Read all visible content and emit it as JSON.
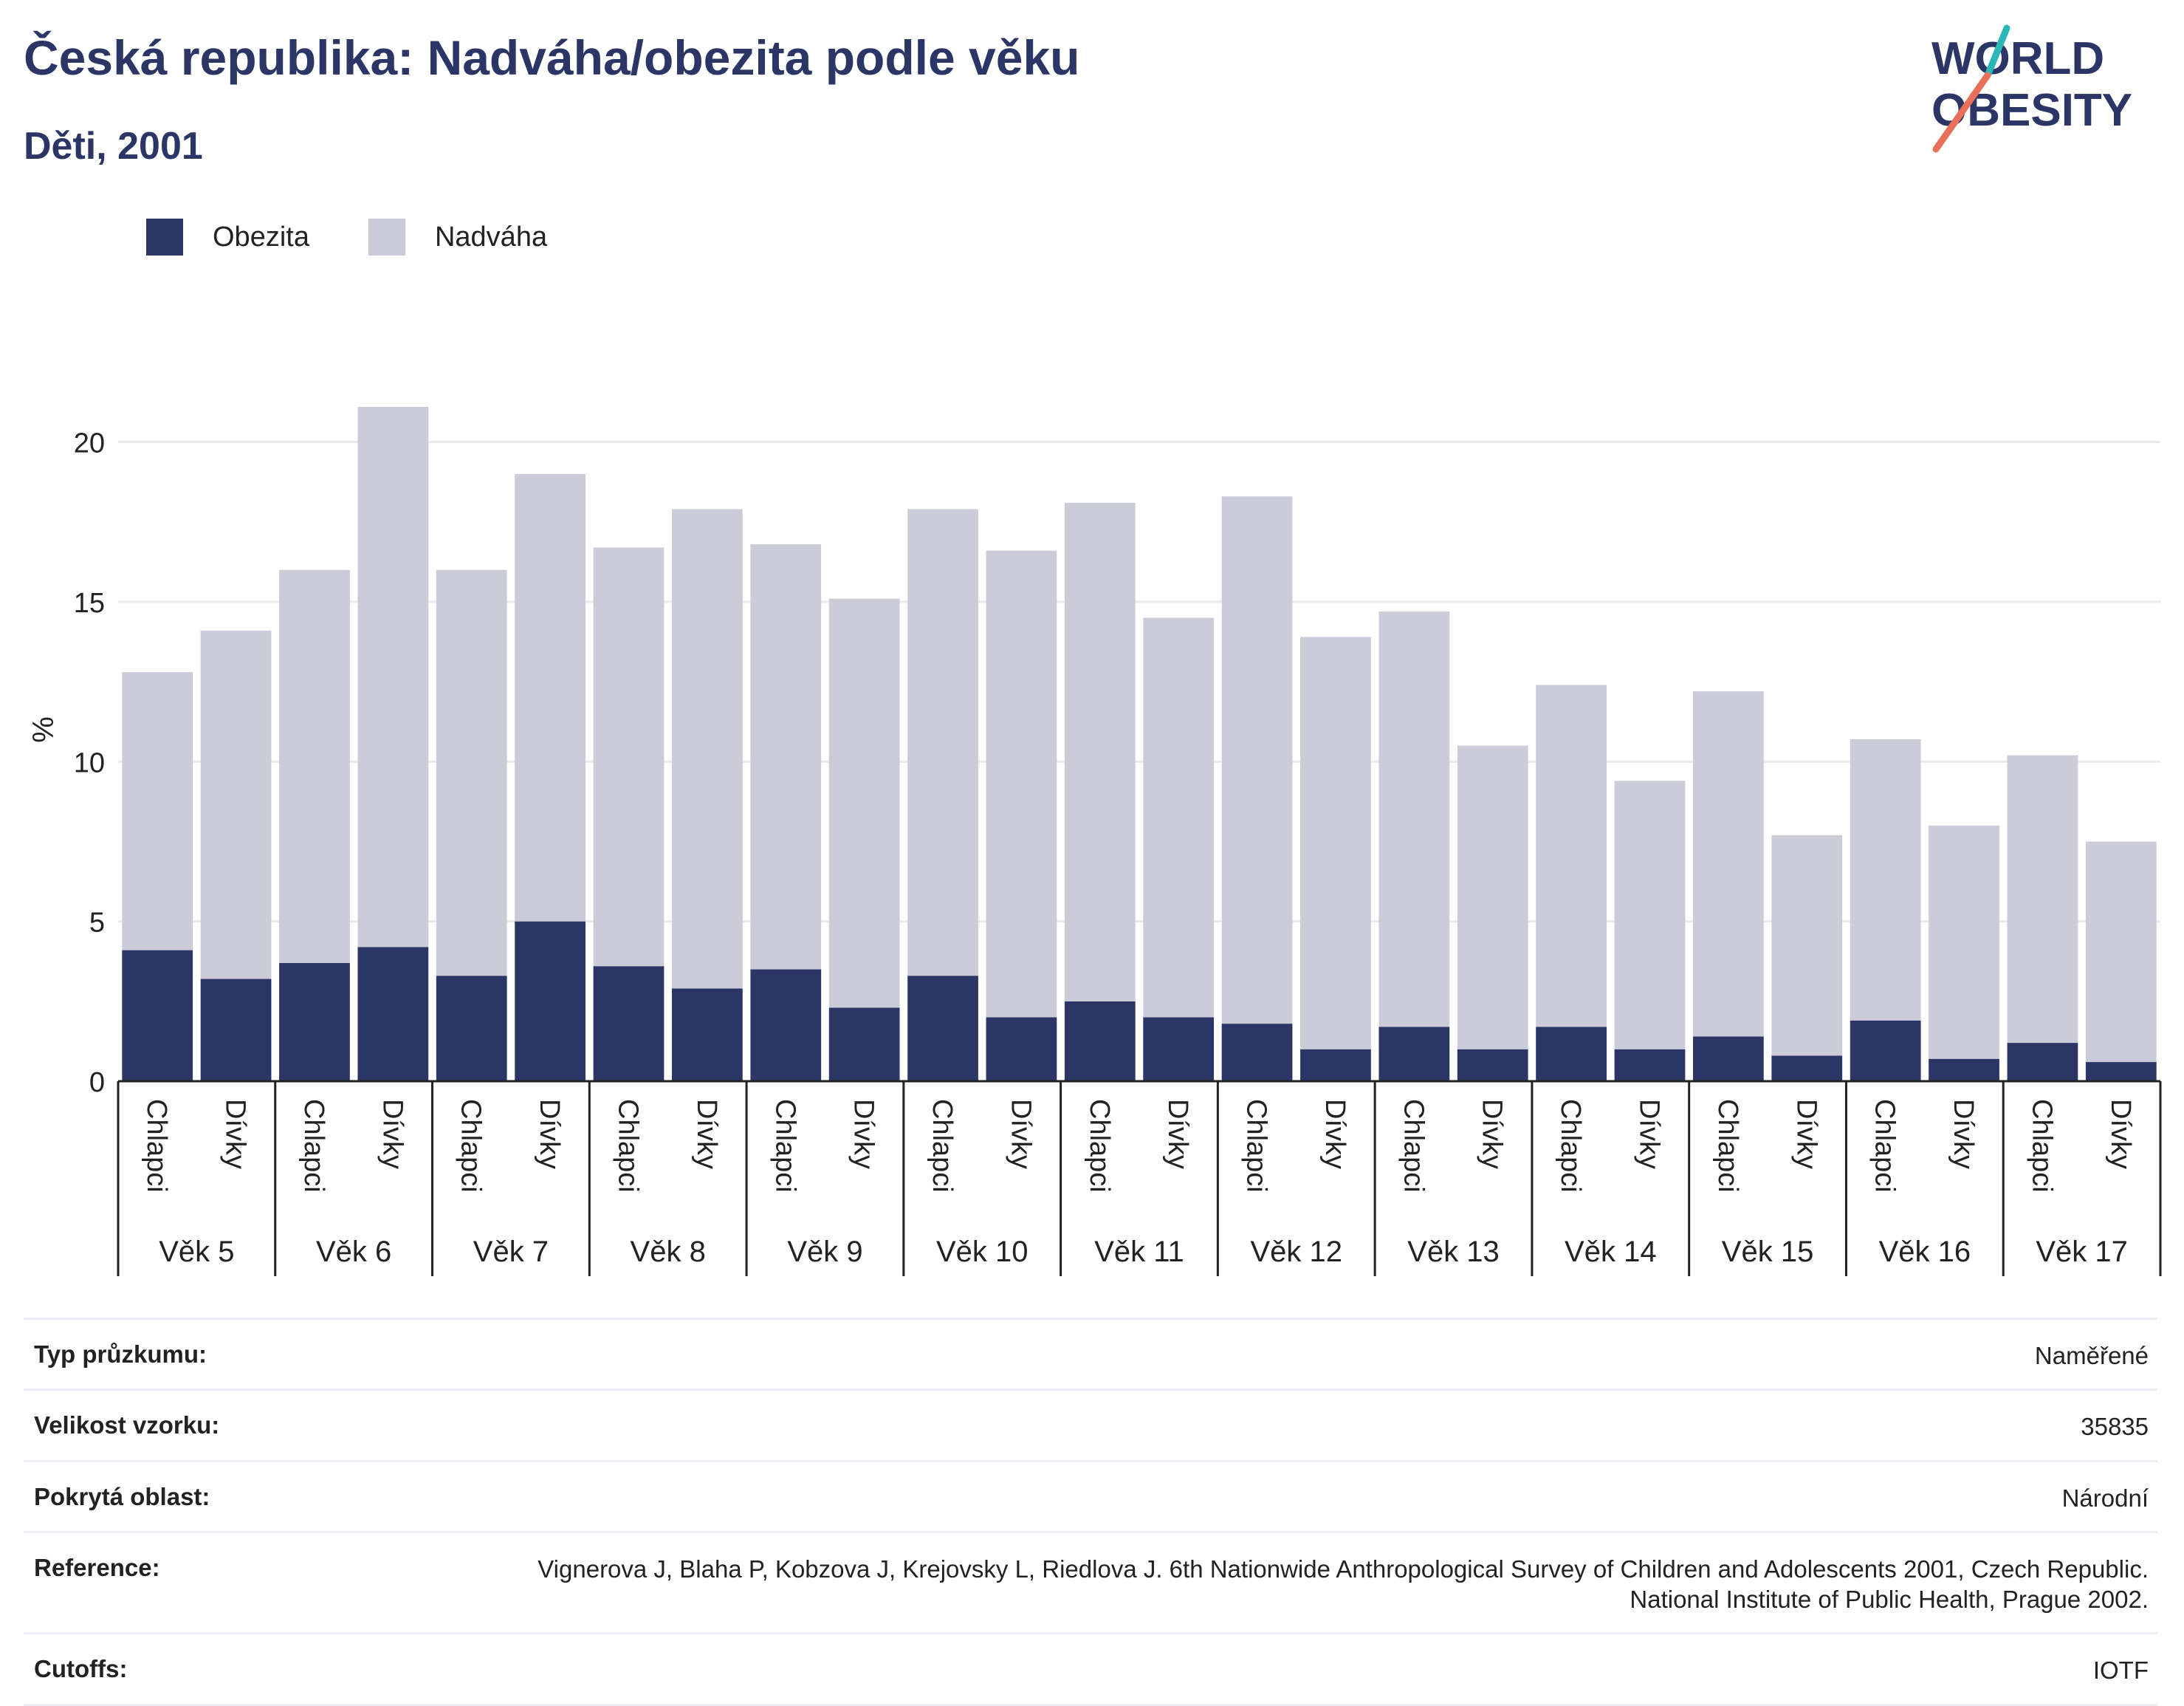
{
  "title": "Česká republika: Nadváha/obezita podle věku",
  "subtitle": "Děti, 2001",
  "logo": {
    "line1": "WORLD",
    "line2": "OBESITY",
    "colors": [
      "#2b3566",
      "#2ab7b7",
      "#e8705a"
    ]
  },
  "legend": [
    {
      "name": "Obezita",
      "color": "#2b3566"
    },
    {
      "name": "Nadváha",
      "color": "#cbccd8"
    }
  ],
  "chart_data": {
    "type": "bar",
    "stacked": true,
    "ylabel": "%",
    "ylim": [
      0,
      22
    ],
    "yticks": [
      0,
      5,
      10,
      15,
      20
    ],
    "grid": true,
    "legend_position": "top-left",
    "groups": [
      "Věk 5",
      "Věk 6",
      "Věk 7",
      "Věk 8",
      "Věk 9",
      "Věk 10",
      "Věk 11",
      "Věk 12",
      "Věk 13",
      "Věk 14",
      "Věk 15",
      "Věk 16",
      "Věk 17"
    ],
    "subcategories": [
      "Chlapci",
      "Dívky"
    ],
    "series": [
      {
        "name": "Obezita",
        "color": "#2b3566",
        "values": [
          4.1,
          3.2,
          3.7,
          4.2,
          3.3,
          5.0,
          3.6,
          2.9,
          3.5,
          2.3,
          3.3,
          2.0,
          2.5,
          2.0,
          1.8,
          1.0,
          1.7,
          1.0,
          1.7,
          1.0,
          1.4,
          0.8,
          1.9,
          0.7,
          1.2,
          0.6
        ]
      },
      {
        "name": "Nadváha",
        "color": "#cbccd8",
        "values": [
          8.7,
          10.9,
          12.3,
          16.9,
          12.7,
          14.0,
          13.1,
          15.0,
          13.3,
          12.8,
          14.6,
          14.6,
          15.6,
          12.5,
          16.5,
          12.9,
          13.0,
          9.5,
          10.7,
          8.4,
          10.8,
          6.9,
          8.8,
          7.3,
          9.0,
          6.9
        ]
      }
    ]
  },
  "meta": [
    {
      "label": "Typ průzkumu:",
      "value": "Naměřené"
    },
    {
      "label": "Velikost vzorku:",
      "value": "35835"
    },
    {
      "label": "Pokrytá oblast:",
      "value": "Národní"
    },
    {
      "label": "Reference:",
      "value": "Vignerova J, Blaha P, Kobzova J, Krejovsky L, Riedlova J. 6th Nationwide Anthropological Survey of Children and Adolescents 2001, Czech Republic. National Institute of Public Health, Prague 2002."
    },
    {
      "label": "Cutoffs:",
      "value": "IOTF"
    }
  ]
}
